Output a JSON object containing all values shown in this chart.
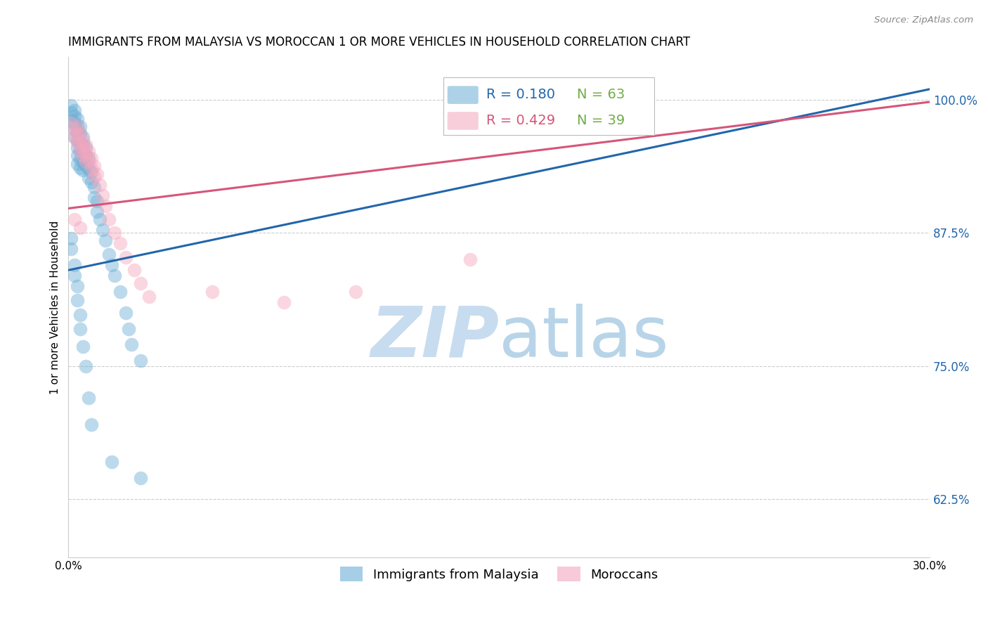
{
  "title": "IMMIGRANTS FROM MALAYSIA VS MOROCCAN 1 OR MORE VEHICLES IN HOUSEHOLD CORRELATION CHART",
  "source": "Source: ZipAtlas.com",
  "ylabel": "1 or more Vehicles in Household",
  "xlim": [
    0.0,
    0.3
  ],
  "ylim": [
    0.57,
    1.04
  ],
  "xticks": [
    0.0,
    0.05,
    0.1,
    0.15,
    0.2,
    0.25,
    0.3
  ],
  "xtick_labels": [
    "0.0%",
    "",
    "",
    "",
    "",
    "",
    "30.0%"
  ],
  "yticks_right": [
    1.0,
    0.875,
    0.75,
    0.625
  ],
  "ytick_labels_right": [
    "100.0%",
    "87.5%",
    "75.0%",
    "62.5%"
  ],
  "legend_r1": "R = 0.180",
  "legend_n1": "N = 63",
  "legend_r2": "R = 0.429",
  "legend_n2": "N = 39",
  "blue_color": "#6BAED6",
  "pink_color": "#F4A6BE",
  "blue_line_color": "#2166AC",
  "pink_line_color": "#D6557A",
  "legend_r_color1": "#2166AC",
  "legend_r_color2": "#D6557A",
  "legend_n_color": "#70AD47",
  "watermark_zip": "ZIP",
  "watermark_atlas": "atlas",
  "watermark_color_zip": "#C8DCF0",
  "watermark_color_atlas": "#B8D4E8",
  "blue_scatter_x": [
    0.001,
    0.001,
    0.001,
    0.002,
    0.002,
    0.002,
    0.002,
    0.002,
    0.003,
    0.003,
    0.003,
    0.003,
    0.003,
    0.003,
    0.003,
    0.004,
    0.004,
    0.004,
    0.004,
    0.004,
    0.004,
    0.005,
    0.005,
    0.005,
    0.005,
    0.005,
    0.006,
    0.006,
    0.006,
    0.007,
    0.007,
    0.007,
    0.008,
    0.008,
    0.009,
    0.009,
    0.01,
    0.01,
    0.011,
    0.012,
    0.013,
    0.014,
    0.015,
    0.016,
    0.018,
    0.02,
    0.021,
    0.022,
    0.025,
    0.001,
    0.001,
    0.002,
    0.002,
    0.003,
    0.003,
    0.004,
    0.004,
    0.005,
    0.006,
    0.007,
    0.008,
    0.015,
    0.025
  ],
  "blue_scatter_y": [
    0.995,
    0.988,
    0.98,
    0.99,
    0.985,
    0.978,
    0.972,
    0.965,
    0.982,
    0.975,
    0.97,
    0.962,
    0.955,
    0.948,
    0.94,
    0.975,
    0.968,
    0.96,
    0.952,
    0.944,
    0.936,
    0.965,
    0.958,
    0.95,
    0.942,
    0.934,
    0.955,
    0.947,
    0.938,
    0.945,
    0.936,
    0.927,
    0.932,
    0.923,
    0.918,
    0.908,
    0.905,
    0.895,
    0.888,
    0.878,
    0.868,
    0.855,
    0.845,
    0.835,
    0.82,
    0.8,
    0.785,
    0.77,
    0.755,
    0.87,
    0.86,
    0.845,
    0.835,
    0.825,
    0.812,
    0.798,
    0.785,
    0.768,
    0.75,
    0.72,
    0.695,
    0.66,
    0.645
  ],
  "pink_scatter_x": [
    0.001,
    0.002,
    0.002,
    0.003,
    0.003,
    0.003,
    0.004,
    0.004,
    0.004,
    0.005,
    0.005,
    0.005,
    0.006,
    0.006,
    0.006,
    0.007,
    0.007,
    0.008,
    0.008,
    0.009,
    0.009,
    0.01,
    0.011,
    0.012,
    0.013,
    0.014,
    0.016,
    0.018,
    0.02,
    0.023,
    0.025,
    0.028,
    0.05,
    0.075,
    0.1,
    0.14,
    0.175,
    0.002,
    0.004
  ],
  "pink_scatter_y": [
    0.978,
    0.972,
    0.965,
    0.975,
    0.968,
    0.96,
    0.968,
    0.96,
    0.952,
    0.962,
    0.955,
    0.948,
    0.958,
    0.95,
    0.942,
    0.952,
    0.944,
    0.945,
    0.936,
    0.938,
    0.928,
    0.93,
    0.92,
    0.91,
    0.9,
    0.888,
    0.875,
    0.865,
    0.852,
    0.84,
    0.828,
    0.815,
    0.82,
    0.81,
    0.82,
    0.85,
    0.995,
    0.888,
    0.88
  ],
  "blue_trend_x": [
    0.0,
    0.3
  ],
  "blue_trend_y": [
    0.84,
    1.01
  ],
  "pink_trend_x": [
    0.0,
    0.3
  ],
  "pink_trend_y": [
    0.898,
    0.998
  ],
  "bottom_legend_labels": [
    "Immigrants from Malaysia",
    "Moroccans"
  ],
  "figsize": [
    14.06,
    8.92
  ],
  "dpi": 100
}
